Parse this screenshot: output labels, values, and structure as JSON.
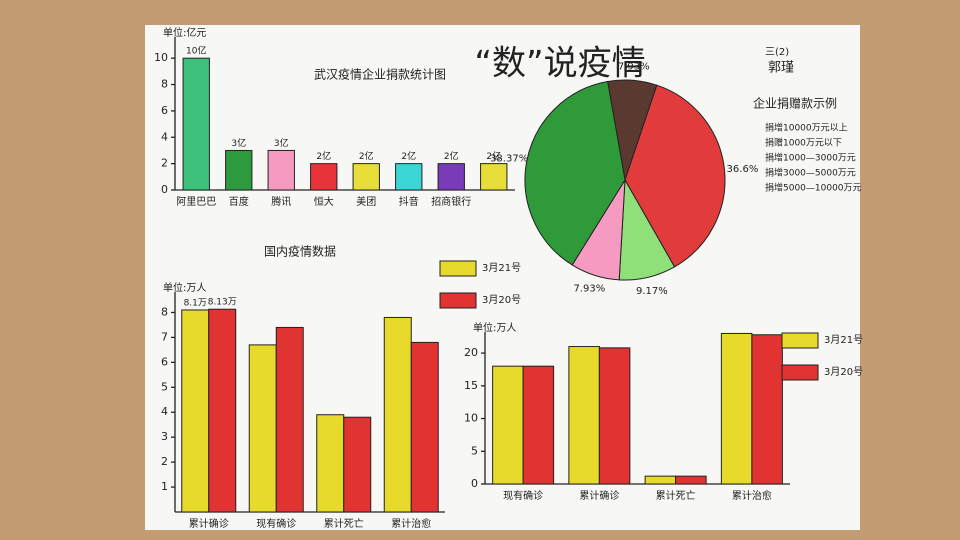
{
  "header": {
    "title": "“数”说疫情",
    "class": "三(2)",
    "author": "郭瑾"
  },
  "chart_data": [
    {
      "type": "bar",
      "title": "武汉疫情企业捐款统计图",
      "y_label": "单位:亿元",
      "categories": [
        "阿里巴巴",
        "百度",
        "腾讯",
        "恒大",
        "美团",
        "抖音",
        "招商银行",
        null
      ],
      "values": [
        10,
        3,
        3,
        2,
        2,
        2,
        2,
        2
      ],
      "value_labels": [
        "10亿",
        "3亿",
        "3亿",
        "2亿",
        "2亿",
        "2亿",
        "2亿",
        "2亿"
      ],
      "colors": [
        "#3cc27a",
        "#2e9a3e",
        "#f59ac0",
        "#e8333a",
        "#e8de3a",
        "#3cd6d6",
        "#7a3bb8",
        "#e8de3a"
      ],
      "ylim": [
        0,
        11
      ],
      "yticks": [
        0,
        2,
        4,
        6,
        8,
        10
      ]
    },
    {
      "type": "pie",
      "title": "企业捐赠款示例",
      "categories": [
        "捐增10000万元以上",
        "捐赠1000万元以下",
        "捐增1000—3000万元",
        "捐增3000—5000万元",
        "捐增5000—10000万元"
      ],
      "values": [
        7.93,
        36.6,
        9.17,
        7.93,
        38.37
      ],
      "value_labels": [
        "7.93%",
        "36.6%",
        "9.17%",
        "7.93%",
        "38.37%"
      ],
      "colors": [
        "#5a3a30",
        "#e23b3b",
        "#90e07a",
        "#f59ac0",
        "#2f9a3a"
      ]
    },
    {
      "type": "bar",
      "title": "国内疫情数据",
      "y_label": "单位:万人",
      "categories": [
        "累计确诊",
        "现有确诊",
        "累计死亡",
        "累计治愈"
      ],
      "series": [
        {
          "name": "3月21号",
          "color": "#e8da2a",
          "values": [
            8.1,
            6.7,
            3.9,
            7.8
          ],
          "value_labels": [
            "8.1万",
            null,
            null,
            null
          ]
        },
        {
          "name": "3月20号",
          "color": "#e23333",
          "values": [
            8.13,
            7.4,
            3.8,
            6.8
          ],
          "value_labels": [
            "8.13万",
            null,
            null,
            null
          ]
        }
      ],
      "ylim": [
        0,
        8.5
      ],
      "yticks": [
        1,
        2,
        3,
        4,
        5,
        6,
        7,
        8
      ]
    },
    {
      "type": "bar",
      "y_label": "单位:万人",
      "categories": [
        "现有确诊",
        "累计确诊",
        "累计死亡",
        "累计治愈"
      ],
      "series": [
        {
          "name": "3月21号",
          "color": "#e8da2a",
          "values": [
            18,
            21,
            1.2,
            23
          ]
        },
        {
          "name": "3月20号",
          "color": "#e23333",
          "values": [
            18,
            20.8,
            1.2,
            22.8
          ]
        }
      ],
      "ylim": [
        0,
        22
      ],
      "yticks": [
        0,
        5,
        10,
        15,
        20
      ]
    }
  ]
}
